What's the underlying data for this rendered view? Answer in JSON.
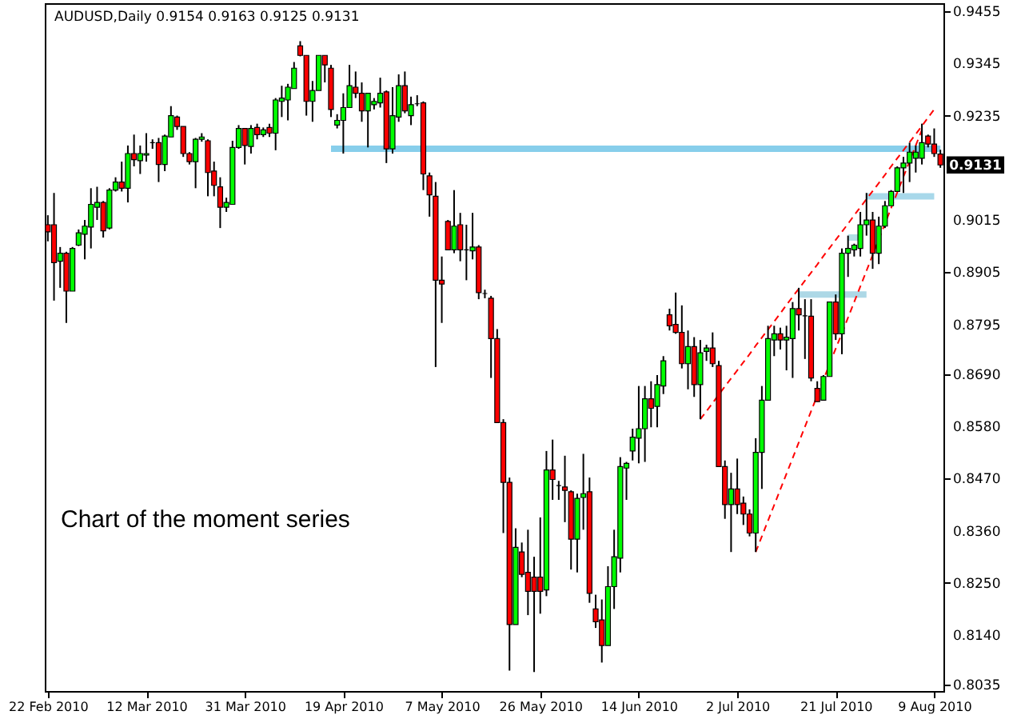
{
  "chart_data": {
    "type": "candlestick",
    "title": "AUDUSD,Daily  0.9154 0.9163 0.9125 0.9131",
    "categories": [
      "22 Feb 2010",
      null,
      null,
      null,
      null,
      null,
      null,
      null,
      null,
      null,
      null,
      null,
      null,
      null,
      null,
      null,
      "12 Mar 2010",
      null,
      null,
      null,
      null,
      null,
      null,
      null,
      null,
      null,
      null,
      null,
      null,
      null,
      null,
      null,
      "31 Mar 2010",
      null,
      null,
      null,
      null,
      null,
      null,
      null,
      null,
      null,
      null,
      null,
      null,
      null,
      null,
      null,
      "19 Apr 2010",
      null,
      null,
      null,
      null,
      null,
      null,
      null,
      null,
      null,
      null,
      null,
      null,
      null,
      null,
      null,
      "7 May 2010",
      null,
      null,
      null,
      null,
      null,
      null,
      null,
      null,
      null,
      null,
      null,
      null,
      null,
      null,
      null,
      "26 May 2010",
      null,
      null,
      null,
      null,
      null,
      null,
      null,
      null,
      null,
      null,
      null,
      null,
      null,
      null,
      null,
      "14 Jun 2010",
      null,
      null,
      null,
      null,
      null,
      null,
      null,
      null,
      null,
      null,
      null,
      null,
      null,
      null,
      null,
      "2 Jul 2010",
      null,
      null,
      null,
      null,
      null,
      null,
      null,
      null,
      null,
      null,
      null,
      null,
      null,
      null,
      null,
      "21 Jul 2010",
      null,
      null,
      null,
      null,
      null,
      null,
      null,
      null,
      null,
      null,
      null,
      null,
      null,
      null,
      null,
      "9 Aug 2010",
      null
    ],
    "ohlc": [
      [
        0.9005,
        0.9025,
        0.897,
        0.899
      ],
      [
        0.9005,
        0.9072,
        0.8845,
        0.8925
      ],
      [
        0.8928,
        0.8958,
        0.8872,
        0.8945
      ],
      [
        0.8945,
        0.8948,
        0.8798,
        0.8865
      ],
      [
        0.8865,
        0.8958,
        0.8865,
        0.8955
      ],
      [
        0.8962,
        0.8995,
        0.896,
        0.8988
      ],
      [
        0.8985,
        0.9015,
        0.8932,
        0.9002
      ],
      [
        0.9,
        0.9082,
        0.8955,
        0.9048
      ],
      [
        0.9042,
        0.9085,
        0.9015,
        0.9052
      ],
      [
        0.9052,
        0.9055,
        0.8978,
        0.8992
      ],
      [
        0.8998,
        0.9082,
        0.8995,
        0.9078
      ],
      [
        0.9078,
        0.9105,
        0.9075,
        0.9095
      ],
      [
        0.9095,
        0.9138,
        0.9075,
        0.9082
      ],
      [
        0.9082,
        0.9172,
        0.9052,
        0.9155
      ],
      [
        0.9155,
        0.9195,
        0.9128,
        0.9142
      ],
      [
        0.914,
        0.9172,
        0.9112,
        0.9155
      ],
      [
        0.9152,
        0.9198,
        0.9138,
        0.9155
      ],
      [
        0.9178,
        0.9185,
        0.9165,
        0.9178
      ],
      [
        0.9178,
        0.9188,
        0.9095,
        0.9132
      ],
      [
        0.9132,
        0.9195,
        0.9118,
        0.9192
      ],
      [
        0.919,
        0.9255,
        0.919,
        0.9235
      ],
      [
        0.9232,
        0.9235,
        0.9205,
        0.9212
      ],
      [
        0.9212,
        0.9212,
        0.9148,
        0.9155
      ],
      [
        0.9155,
        0.9158,
        0.9132,
        0.9138
      ],
      [
        0.9138,
        0.9188,
        0.9082,
        0.9185
      ],
      [
        0.9185,
        0.9198,
        0.918,
        0.919
      ],
      [
        0.9182,
        0.9185,
        0.9065,
        0.9115
      ],
      [
        0.9118,
        0.9138,
        0.9065,
        0.9088
      ],
      [
        0.9085,
        0.9105,
        0.8998,
        0.9042
      ],
      [
        0.9042,
        0.9062,
        0.9032,
        0.9052
      ],
      [
        0.9048,
        0.9182,
        0.9048,
        0.9168
      ],
      [
        0.9168,
        0.9215,
        0.9165,
        0.9208
      ],
      [
        0.9208,
        0.9208,
        0.9132,
        0.9172
      ],
      [
        0.917,
        0.9215,
        0.9155,
        0.9208
      ],
      [
        0.921,
        0.9218,
        0.9185,
        0.9195
      ],
      [
        0.9195,
        0.921,
        0.919,
        0.9205
      ],
      [
        0.921,
        0.9218,
        0.919,
        0.9198
      ],
      [
        0.9198,
        0.9272,
        0.9162,
        0.9268
      ],
      [
        0.9265,
        0.9298,
        0.9232,
        0.9272
      ],
      [
        0.9268,
        0.9302,
        0.9225,
        0.9295
      ],
      [
        0.9292,
        0.9348,
        0.9292,
        0.9335
      ],
      [
        0.9382,
        0.9392,
        0.936,
        0.9362
      ],
      [
        0.9362,
        0.9362,
        0.9235,
        0.9265
      ],
      [
        0.9265,
        0.9308,
        0.9222,
        0.9288
      ],
      [
        0.9288,
        0.9362,
        0.9288,
        0.9362
      ],
      [
        0.9362,
        0.9362,
        0.9305,
        0.9342
      ],
      [
        0.9335,
        0.9342,
        0.9232,
        0.9248
      ],
      [
        0.9215,
        0.9238,
        0.9208,
        0.9225
      ],
      [
        0.9225,
        0.9282,
        0.9155,
        0.9252
      ],
      [
        0.9252,
        0.9342,
        0.9252,
        0.9298
      ],
      [
        0.9295,
        0.9328,
        0.9272,
        0.9282
      ],
      [
        0.9282,
        0.9305,
        0.9222,
        0.9245
      ],
      [
        0.9245,
        0.9282,
        0.9168,
        0.9282
      ],
      [
        0.9258,
        0.9272,
        0.9248,
        0.9265
      ],
      [
        0.9262,
        0.9315,
        0.9252,
        0.9282
      ],
      [
        0.9285,
        0.9288,
        0.9135,
        0.9165
      ],
      [
        0.9165,
        0.9295,
        0.9155,
        0.9235
      ],
      [
        0.9232,
        0.9322,
        0.9222,
        0.9298
      ],
      [
        0.9298,
        0.9328,
        0.924,
        0.9245
      ],
      [
        0.9235,
        0.9275,
        0.9215,
        0.9258
      ],
      [
        0.926,
        0.9278,
        0.9255,
        0.926
      ],
      [
        0.9262,
        0.9265,
        0.9078,
        0.9112
      ],
      [
        0.9108,
        0.9115,
        0.9022,
        0.9068
      ],
      [
        0.9065,
        0.9095,
        0.8705,
        0.8888
      ],
      [
        0.8888,
        0.8938,
        0.8798,
        0.888
      ],
      [
        0.9012,
        0.9015,
        0.8952,
        0.8952
      ],
      [
        0.8952,
        0.9078,
        0.8945,
        0.9002
      ],
      [
        0.9005,
        0.903,
        0.8928,
        0.8952
      ],
      [
        0.8952,
        0.9005,
        0.8888,
        0.8952
      ],
      [
        0.895,
        0.903,
        0.8932,
        0.8958
      ],
      [
        0.8958,
        0.8962,
        0.8848,
        0.8862
      ],
      [
        0.886,
        0.8868,
        0.885,
        0.886
      ],
      [
        0.885,
        0.8855,
        0.8682,
        0.8765
      ],
      [
        0.8765,
        0.8785,
        0.8588,
        0.8588
      ],
      [
        0.8588,
        0.8595,
        0.8355,
        0.8462
      ],
      [
        0.8462,
        0.8472,
        0.8065,
        0.8162
      ],
      [
        0.8162,
        0.8365,
        0.8162,
        0.8325
      ],
      [
        0.8315,
        0.8335,
        0.8262,
        0.8268
      ],
      [
        0.8272,
        0.8362,
        0.8182,
        0.8232
      ],
      [
        0.8262,
        0.8305,
        0.8062,
        0.8232
      ],
      [
        0.8262,
        0.8388,
        0.8185,
        0.8232
      ],
      [
        0.8235,
        0.8528,
        0.8222,
        0.8488
      ],
      [
        0.8488,
        0.8552,
        0.8425,
        0.8468
      ],
      [
        0.8455,
        0.8465,
        0.8425,
        0.8455
      ],
      [
        0.8452,
        0.8518,
        0.8378,
        0.8445
      ],
      [
        0.8442,
        0.8445,
        0.8278,
        0.8342
      ],
      [
        0.8342,
        0.8438,
        0.8272,
        0.8428
      ],
      [
        0.843,
        0.8522,
        0.8362,
        0.8438
      ],
      [
        0.8442,
        0.8472,
        0.8208,
        0.8228
      ],
      [
        0.8195,
        0.8225,
        0.8155,
        0.8168
      ],
      [
        0.8172,
        0.8215,
        0.8082,
        0.8118
      ],
      [
        0.8118,
        0.8285,
        0.8118,
        0.8242
      ],
      [
        0.8242,
        0.8362,
        0.8195,
        0.8305
      ],
      [
        0.8302,
        0.8515,
        0.8272,
        0.8495
      ],
      [
        0.8492,
        0.8505,
        0.8425,
        0.8502
      ],
      [
        0.8528,
        0.8575,
        0.8508,
        0.8557
      ],
      [
        0.8555,
        0.8665,
        0.8502,
        0.8575
      ],
      [
        0.8575,
        0.8665,
        0.8505,
        0.8638
      ],
      [
        0.8638,
        0.8675,
        0.8578,
        0.8618
      ],
      [
        0.8622,
        0.8688,
        0.8578,
        0.8668
      ],
      [
        0.8665,
        0.8728,
        0.8648,
        0.8718
      ],
      [
        0.8815,
        0.8828,
        0.8782,
        0.8792
      ],
      [
        0.8795,
        0.8862,
        0.8775,
        0.8778
      ],
      [
        0.8778,
        0.8835,
        0.8702,
        0.8712
      ],
      [
        0.8712,
        0.8782,
        0.8658,
        0.8748
      ],
      [
        0.8748,
        0.8768,
        0.8642,
        0.8668
      ],
      [
        0.8668,
        0.8762,
        0.8595,
        0.8735
      ],
      [
        0.8738,
        0.8752,
        0.8718,
        0.8745
      ],
      [
        0.8745,
        0.8778,
        0.8705,
        0.8712
      ],
      [
        0.8708,
        0.8718,
        0.8495,
        0.8495
      ],
      [
        0.8495,
        0.8508,
        0.8385,
        0.8415
      ],
      [
        0.8415,
        0.8482,
        0.8315,
        0.8448
      ],
      [
        0.8448,
        0.8512,
        0.8395,
        0.8415
      ],
      [
        0.8418,
        0.8432,
        0.8372,
        0.8395
      ],
      [
        0.8395,
        0.8405,
        0.8348,
        0.8355
      ],
      [
        0.8355,
        0.8555,
        0.8315,
        0.8525
      ],
      [
        0.8525,
        0.8665,
        0.8448,
        0.8635
      ],
      [
        0.8635,
        0.8792,
        0.8635,
        0.8765
      ],
      [
        0.8762,
        0.8792,
        0.8728,
        0.8775
      ],
      [
        0.8775,
        0.8788,
        0.8742,
        0.8762
      ],
      [
        0.8762,
        0.8792,
        0.8698,
        0.8768
      ],
      [
        0.8765,
        0.8842,
        0.8682,
        0.8828
      ],
      [
        0.8828,
        0.8872,
        0.8782,
        0.8815
      ],
      [
        0.8813,
        0.8848,
        0.8722,
        0.8813
      ],
      [
        0.8812,
        0.8848,
        0.8675,
        0.8682
      ],
      [
        0.866,
        0.8675,
        0.8632,
        0.8632
      ],
      [
        0.8635,
        0.8688,
        0.8635,
        0.8685
      ],
      [
        0.8685,
        0.8842,
        0.8685,
        0.8842
      ],
      [
        0.8842,
        0.8858,
        0.8762,
        0.8775
      ],
      [
        0.8775,
        0.8955,
        0.8732,
        0.8945
      ],
      [
        0.8945,
        0.8982,
        0.8895,
        0.8955
      ],
      [
        0.8952,
        0.8965,
        0.8938,
        0.8962
      ],
      [
        0.8955,
        0.9032,
        0.8938,
        0.9005
      ],
      [
        0.9005,
        0.9072,
        0.8982,
        0.9015
      ],
      [
        0.9015,
        0.9032,
        0.8912,
        0.8945
      ],
      [
        0.8945,
        0.9022,
        0.8922,
        0.9002
      ],
      [
        0.9002,
        0.9055,
        0.8998,
        0.9045
      ],
      [
        0.9045,
        0.9078,
        0.9045,
        0.9075
      ],
      [
        0.9075,
        0.9128,
        0.9075,
        0.9125
      ],
      [
        0.9125,
        0.9148,
        0.9072,
        0.9135
      ],
      [
        0.9135,
        0.9178,
        0.9095,
        0.9158
      ],
      [
        0.9145,
        0.9172,
        0.9115,
        0.9158
      ],
      [
        0.9145,
        0.9218,
        0.9132,
        0.9178
      ],
      [
        0.9192,
        0.9195,
        0.9168,
        0.9175
      ],
      [
        0.9175,
        0.9208,
        0.9148,
        0.9155
      ],
      [
        0.9154,
        0.9163,
        0.9125,
        0.9131
      ]
    ],
    "colors": [
      "#ff0000",
      "#ff0000",
      "#00ff00",
      "#ff0000",
      "#00ff00",
      "#00ff00",
      "#00ff00",
      "#00ff00",
      "#00ff00",
      "#ff0000",
      "#00ff00",
      "#00ff00",
      "#ff0000",
      "#00ff00",
      "#ff0000",
      "#00ff00",
      "#00ff00",
      "#000000",
      "#ff0000",
      "#00ff00",
      "#00ff00",
      "#ff0000",
      "#ff0000",
      "#ff0000",
      "#00ff00",
      "#00ff00",
      "#ff0000",
      "#ff0000",
      "#ff0000",
      "#00ff00",
      "#00ff00",
      "#00ff00",
      "#ff0000",
      "#00ff00",
      "#ff0000",
      "#00ff00",
      "#ff0000",
      "#00ff00",
      "#00ff00",
      "#00ff00",
      "#00ff00",
      "#ff0000",
      "#ff0000",
      "#00ff00",
      "#00ff00",
      "#ff0000",
      "#ff0000",
      "#00ff00",
      "#00ff00",
      "#00ff00",
      "#ff0000",
      "#ff0000",
      "#00ff00",
      "#00ff00",
      "#00ff00",
      "#ff0000",
      "#00ff00",
      "#00ff00",
      "#ff0000",
      "#00ff00",
      "#000000",
      "#ff0000",
      "#ff0000",
      "#ff0000",
      "#ff0000",
      "#ff0000",
      "#00ff00",
      "#ff0000",
      "#000000",
      "#00ff00",
      "#ff0000",
      "#000000",
      "#ff0000",
      "#ff0000",
      "#ff0000",
      "#ff0000",
      "#00ff00",
      "#ff0000",
      "#ff0000",
      "#ff0000",
      "#ff0000",
      "#00ff00",
      "#ff0000",
      "#000000",
      "#ff0000",
      "#ff0000",
      "#00ff00",
      "#00ff00",
      "#ff0000",
      "#ff0000",
      "#ff0000",
      "#00ff00",
      "#00ff00",
      "#00ff00",
      "#00ff00",
      "#00ff00",
      "#00ff00",
      "#00ff00",
      "#ff0000",
      "#00ff00",
      "#00ff00",
      "#ff0000",
      "#ff0000",
      "#ff0000",
      "#00ff00",
      "#ff0000",
      "#00ff00",
      "#00ff00",
      "#ff0000",
      "#ff0000",
      "#ff0000",
      "#00ff00",
      "#ff0000",
      "#ff0000",
      "#ff0000",
      "#00ff00",
      "#00ff00",
      "#00ff00",
      "#00ff00",
      "#ff0000",
      "#00ff00",
      "#00ff00",
      "#ff0000",
      "#000000",
      "#ff0000",
      "#ff0000",
      "#00ff00",
      "#00ff00",
      "#ff0000",
      "#00ff00",
      "#00ff00",
      "#00ff00",
      "#00ff00",
      "#00ff00",
      "#ff0000",
      "#00ff00",
      "#00ff00",
      "#00ff00",
      "#00ff00",
      "#00ff00",
      "#00ff00",
      "#00ff00",
      "#00ff00",
      "#ff0000",
      "#ff0000",
      "#ff0000"
    ],
    "series": [
      {
        "type": "line",
        "color": "#87ceeb",
        "line_style": "solid",
        "values": [
          null,
          null,
          null,
          null,
          null,
          null,
          null,
          null,
          null,
          null,
          null,
          null,
          null,
          null,
          null,
          null,
          null,
          null,
          null,
          null,
          null,
          null,
          null,
          null,
          null,
          null,
          null,
          null,
          null,
          null,
          null,
          null,
          null,
          null,
          null,
          null,
          null,
          null,
          null,
          null,
          null,
          null,
          null,
          null,
          null,
          null,
          0.9165,
          0.9165,
          0.9165,
          0.9165,
          0.9165,
          0.9165,
          0.9165,
          0.9165,
          0.9165,
          0.9165,
          0.9165,
          0.9165,
          0.9165,
          0.9165,
          0.9165,
          0.9165,
          0.9165,
          0.9165,
          0.9165,
          0.9165,
          0.9165,
          0.9165,
          0.9165,
          0.9165,
          0.9165,
          0.9165,
          0.9165,
          0.9165,
          0.9165,
          0.9165,
          0.9165,
          0.9165,
          0.9165,
          0.9165,
          0.9165,
          0.9165,
          0.9165,
          0.9165,
          0.9165,
          0.9165,
          0.9165,
          0.9165,
          0.9165,
          0.9165,
          0.9165,
          0.9165,
          0.9165,
          0.9165,
          0.9165,
          0.9165,
          0.9165,
          0.9165,
          0.9165,
          0.9165,
          0.9165,
          0.9165,
          0.9165,
          0.9165,
          0.9165,
          0.9165,
          0.9165,
          0.9165,
          0.9165,
          0.9165,
          0.9165,
          0.9165,
          0.9165,
          0.9165,
          0.9165,
          0.9165,
          0.9165,
          0.9165,
          0.9165,
          0.9165,
          0.9165,
          0.9165,
          0.9165,
          0.9165,
          0.9165,
          0.9165,
          0.9165,
          0.9165,
          0.9165,
          0.9165,
          0.9165,
          0.9165,
          0.9165,
          0.9165,
          0.9165,
          0.9165,
          0.9165,
          0.9165,
          0.9165,
          0.9165,
          0.9165,
          0.9165,
          0.9165,
          0.9165,
          0.9165,
          0.9165
        ]
      },
      {
        "type": "line",
        "color": "#add8e6",
        "line_style": "solid",
        "values": [
          null,
          null,
          null,
          null,
          null,
          null,
          null,
          null,
          null,
          null,
          null,
          null,
          null,
          null,
          null,
          null,
          null,
          null,
          null,
          null,
          null,
          null,
          null,
          null,
          null,
          null,
          null,
          null,
          null,
          null,
          null,
          null,
          null,
          null,
          null,
          null,
          null,
          null,
          null,
          null,
          null,
          null,
          null,
          null,
          null,
          null,
          null,
          null,
          null,
          null,
          null,
          null,
          null,
          null,
          null,
          null,
          null,
          null,
          null,
          null,
          null,
          null,
          null,
          null,
          null,
          null,
          null,
          null,
          null,
          null,
          null,
          null,
          null,
          null,
          null,
          null,
          null,
          null,
          null,
          null,
          null,
          null,
          null,
          null,
          null,
          null,
          null,
          null,
          null,
          null,
          null,
          null,
          null,
          null,
          null,
          null,
          null,
          null,
          null,
          null,
          null,
          null,
          null,
          null,
          null,
          null,
          null,
          null,
          null,
          null,
          null,
          null,
          null,
          null,
          null,
          null,
          null,
          null,
          null,
          null,
          null,
          null,
          0.8858,
          0.8858,
          0.8858,
          0.8858,
          0.8858,
          0.8858,
          0.8858,
          0.8858,
          0.8858,
          0.8858,
          0.8858,
          0.8858,
          null,
          null,
          null,
          null,
          null,
          null,
          null,
          null,
          null,
          null,
          null,
          null
        ]
      },
      {
        "type": "line",
        "color": "#b0dfe5",
        "line_style": "solid",
        "values": [
          null,
          null,
          null,
          null,
          null,
          null,
          null,
          null,
          null,
          null,
          null,
          null,
          null,
          null,
          null,
          null,
          null,
          null,
          null,
          null,
          null,
          null,
          null,
          null,
          null,
          null,
          null,
          null,
          null,
          null,
          null,
          null,
          null,
          null,
          null,
          null,
          null,
          null,
          null,
          null,
          null,
          null,
          null,
          null,
          null,
          null,
          null,
          null,
          null,
          null,
          null,
          null,
          null,
          null,
          null,
          null,
          null,
          null,
          null,
          null,
          null,
          null,
          null,
          null,
          null,
          null,
          null,
          null,
          null,
          null,
          null,
          null,
          null,
          null,
          null,
          null,
          null,
          null,
          null,
          null,
          null,
          null,
          null,
          null,
          null,
          null,
          null,
          null,
          null,
          null,
          null,
          null,
          null,
          null,
          null,
          null,
          null,
          null,
          null,
          null,
          null,
          null,
          null,
          null,
          null,
          null,
          null,
          null,
          null,
          null,
          null,
          null,
          null,
          null,
          null,
          null,
          null,
          null,
          null,
          null,
          null,
          null,
          null,
          null,
          null,
          null,
          null,
          null,
          null,
          null,
          0.8978,
          0.8978,
          0.8978,
          null,
          null,
          null,
          null,
          null,
          null,
          null,
          null,
          null,
          null,
          null,
          null,
          null
        ]
      },
      {
        "type": "line",
        "color": "#a8d8ea",
        "line_style": "solid",
        "values": [
          null,
          null,
          null,
          null,
          null,
          null,
          null,
          null,
          null,
          null,
          null,
          null,
          null,
          null,
          null,
          null,
          null,
          null,
          null,
          null,
          null,
          null,
          null,
          null,
          null,
          null,
          null,
          null,
          null,
          null,
          null,
          null,
          null,
          null,
          null,
          null,
          null,
          null,
          null,
          null,
          null,
          null,
          null,
          null,
          null,
          null,
          null,
          null,
          null,
          null,
          null,
          null,
          null,
          null,
          null,
          null,
          null,
          null,
          null,
          null,
          null,
          null,
          null,
          null,
          null,
          null,
          null,
          null,
          null,
          null,
          null,
          null,
          null,
          null,
          null,
          null,
          null,
          null,
          null,
          null,
          null,
          null,
          null,
          null,
          null,
          null,
          null,
          null,
          null,
          null,
          null,
          null,
          null,
          null,
          null,
          null,
          null,
          null,
          null,
          null,
          null,
          null,
          null,
          null,
          null,
          null,
          null,
          null,
          null,
          null,
          null,
          null,
          null,
          null,
          null,
          null,
          null,
          null,
          null,
          null,
          null,
          null,
          null,
          null,
          null,
          null,
          null,
          null,
          null,
          null,
          null,
          null,
          null,
          0.9065,
          0.9065,
          0.9065,
          0.9065,
          0.9065,
          0.9065,
          0.9065,
          0.9065,
          0.9065,
          0.9065,
          0.9065,
          0.9065,
          null
        ]
      },
      {
        "type": "line",
        "color": "#ff0000",
        "line_style": "dashed",
        "values": [
          null,
          null,
          null,
          null,
          null,
          null,
          null,
          null,
          null,
          null,
          null,
          null,
          null,
          null,
          null,
          null,
          null,
          null,
          null,
          null,
          null,
          null,
          null,
          null,
          null,
          null,
          null,
          null,
          null,
          null,
          null,
          null,
          null,
          null,
          null,
          null,
          null,
          null,
          null,
          null,
          null,
          null,
          null,
          null,
          null,
          null,
          null,
          null,
          null,
          null,
          null,
          null,
          null,
          null,
          null,
          null,
          null,
          null,
          null,
          null,
          null,
          null,
          null,
          null,
          null,
          null,
          null,
          null,
          null,
          null,
          null,
          null,
          null,
          null,
          null,
          null,
          null,
          null,
          null,
          null,
          null,
          null,
          null,
          null,
          null,
          null,
          null,
          null,
          null,
          null,
          null,
          null,
          null,
          null,
          null,
          null,
          null,
          null,
          null,
          null,
          null,
          null,
          null,
          null,
          null,
          null,
          0.8595,
          0.8612,
          0.8629,
          0.8647,
          0.8664,
          0.8681,
          0.8698,
          0.8715,
          0.8732,
          0.875,
          0.8767,
          0.8784,
          0.8801,
          0.8818,
          0.8836,
          0.8853,
          0.887,
          0.8887,
          0.8904,
          0.8921,
          0.8939,
          0.8956,
          0.8973,
          0.899,
          0.9007,
          0.9025,
          0.9042,
          0.9059,
          0.9076,
          0.9093,
          0.911,
          0.9128,
          0.9145,
          0.9162,
          0.9179,
          0.9196,
          0.9213,
          0.9231,
          0.9248,
          null
        ]
      },
      {
        "type": "line",
        "color": "#ff0000",
        "line_style": "dashed",
        "values": [
          null,
          null,
          null,
          null,
          null,
          null,
          null,
          null,
          null,
          null,
          null,
          null,
          null,
          null,
          null,
          null,
          null,
          null,
          null,
          null,
          null,
          null,
          null,
          null,
          null,
          null,
          null,
          null,
          null,
          null,
          null,
          null,
          null,
          null,
          null,
          null,
          null,
          null,
          null,
          null,
          null,
          null,
          null,
          null,
          null,
          null,
          null,
          null,
          null,
          null,
          null,
          null,
          null,
          null,
          null,
          null,
          null,
          null,
          null,
          null,
          null,
          null,
          null,
          null,
          null,
          null,
          null,
          null,
          null,
          null,
          null,
          null,
          null,
          null,
          null,
          null,
          null,
          null,
          null,
          null,
          null,
          null,
          null,
          null,
          null,
          null,
          null,
          null,
          null,
          null,
          null,
          null,
          null,
          null,
          null,
          null,
          null,
          null,
          null,
          null,
          null,
          null,
          null,
          null,
          null,
          null,
          null,
          null,
          null,
          null,
          null,
          null,
          null,
          null,
          null,
          0.8315,
          0.8348,
          0.8381,
          0.8414,
          0.8447,
          0.848,
          0.8513,
          0.8546,
          0.8579,
          0.8612,
          0.8645,
          0.8678,
          0.8711,
          0.8744,
          0.8776,
          0.8809,
          0.8842,
          0.8875,
          0.8908,
          0.8941,
          0.8974,
          0.9007,
          0.904,
          0.9073,
          0.9106,
          0.9139,
          0.9172,
          0.9205,
          null,
          null,
          null
        ]
      }
    ],
    "ylim": [
      0.8022,
      0.9472
    ],
    "yticks": [
      0.9455,
      0.9345,
      0.9235,
      0.9015,
      0.8905,
      0.8795,
      {
        "value": 0.869,
        "label": "0.8690"
      },
      {
        "value": 0.858,
        "label": "0.8580"
      },
      {
        "value": 0.847,
        "label": "0.8470"
      },
      {
        "value": 0.836,
        "label": "0.8360"
      },
      {
        "value": 0.825,
        "label": "0.8250"
      },
      {
        "value": 0.814,
        "label": "0.8140"
      },
      0.8035
    ],
    "annotations": [
      "Chart of the moment series",
      "0.9131"
    ]
  }
}
